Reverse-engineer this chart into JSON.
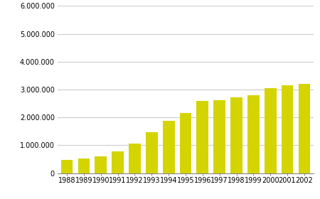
{
  "years": [
    "1988",
    "1989",
    "1990",
    "1991",
    "1992",
    "1993",
    "1994",
    "1995",
    "1996",
    "1997",
    "1998",
    "1999",
    "2000",
    "2001",
    "2002"
  ],
  "values": [
    480000,
    530000,
    600000,
    790000,
    1050000,
    1470000,
    1870000,
    2170000,
    2590000,
    2620000,
    2720000,
    2800000,
    3060000,
    3160000,
    3200000
  ],
  "bar_color": "#d4d400",
  "background_color": "#ffffff",
  "plot_bg_color": "#ffffff",
  "grid_color": "#cccccc",
  "ylim": [
    0,
    6000000
  ],
  "yticks": [
    0,
    1000000,
    2000000,
    3000000,
    4000000,
    5000000,
    6000000
  ],
  "ytick_labels": [
    "0",
    "1.000.000",
    "2.000.000",
    "3.000.000",
    "4.000.000",
    "5.000.000",
    "6.000.000"
  ],
  "tick_fontsize": 7,
  "bar_width": 0.7
}
